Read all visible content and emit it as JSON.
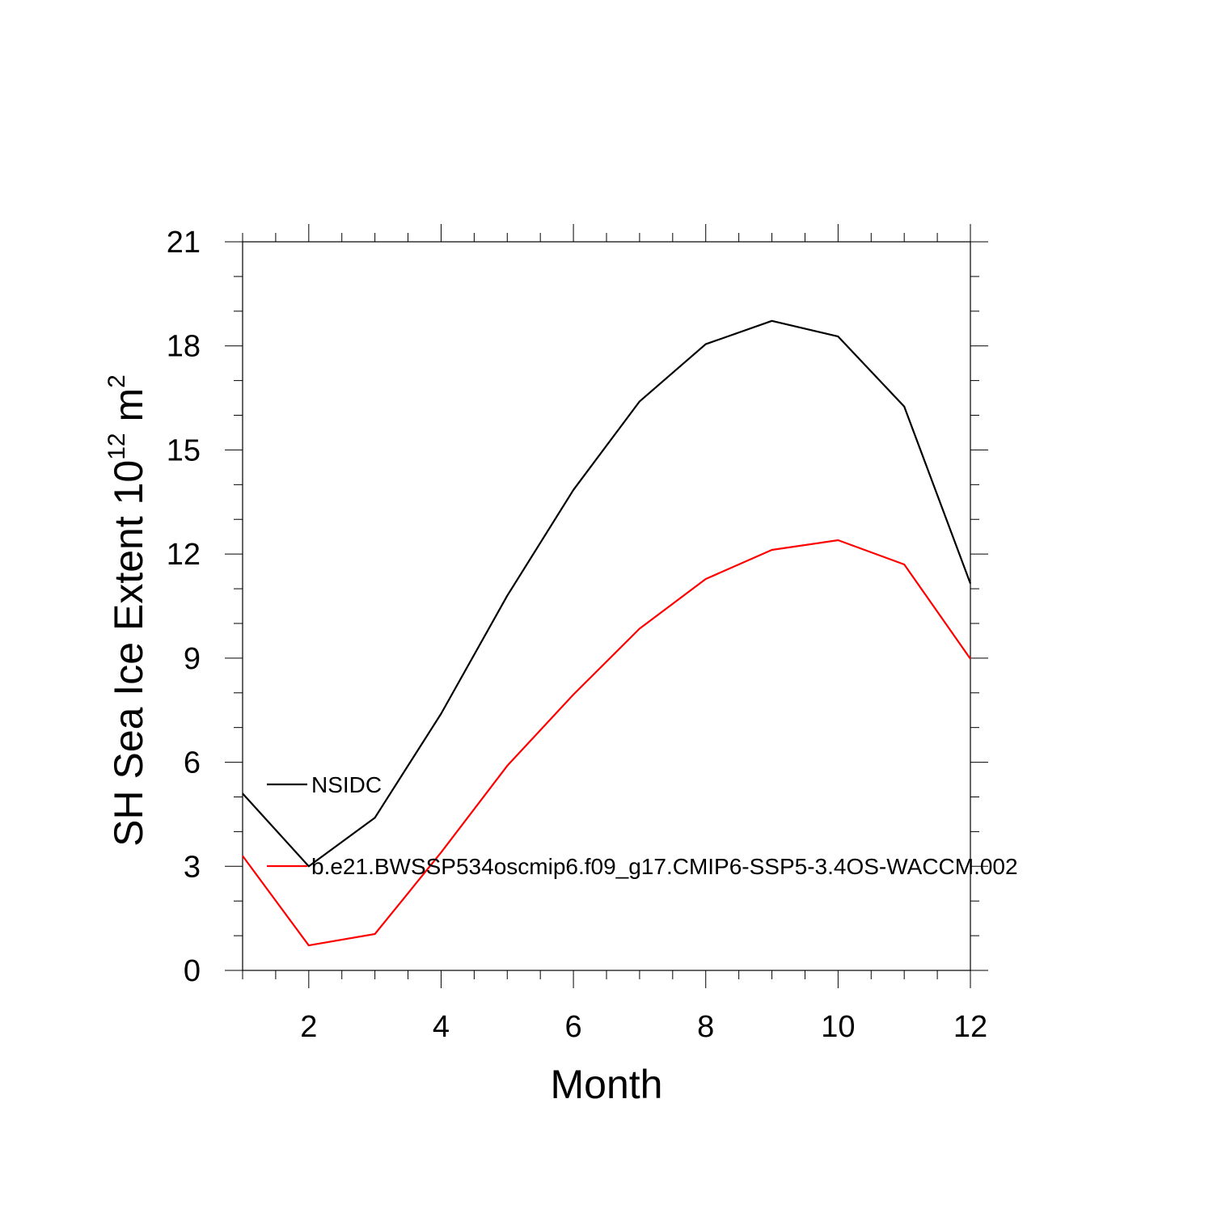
{
  "chart_data": {
    "type": "line",
    "title": "",
    "xlabel": "Month",
    "ylabel": {
      "main": "SH Sea Ice Extent 10",
      "exponent1": "12",
      "unit": " m",
      "exponent2": "2"
    },
    "xlim": [
      1,
      12
    ],
    "ylim": [
      0,
      21
    ],
    "x_ticks": [
      2,
      4,
      6,
      8,
      10,
      12
    ],
    "x_tick_labels": [
      "2",
      "4",
      "6",
      "8",
      "10",
      "12"
    ],
    "y_ticks": [
      0,
      3,
      6,
      9,
      12,
      15,
      18,
      21
    ],
    "y_tick_labels": [
      "0",
      "3",
      "6",
      "9",
      "12",
      "15",
      "18",
      "21"
    ],
    "x": [
      1,
      2,
      3,
      4,
      5,
      6,
      7,
      8,
      9,
      10,
      11,
      12
    ],
    "series": [
      {
        "name": "NSIDC",
        "color": "#000000",
        "values": [
          5.1,
          3.0,
          4.4,
          7.4,
          10.8,
          13.85,
          16.4,
          18.05,
          18.72,
          18.27,
          16.25,
          11.15
        ]
      },
      {
        "name": "b.e21.BWSSP534oscmip6.f09_g17.CMIP6-SSP5-3.4OS-WACCM.002",
        "color": "#ff0000",
        "values": [
          3.3,
          0.72,
          1.05,
          3.4,
          5.9,
          7.95,
          9.85,
          11.28,
          12.12,
          12.4,
          11.7,
          8.98
        ]
      }
    ],
    "legend_position": "inside-left",
    "grid": false
  }
}
